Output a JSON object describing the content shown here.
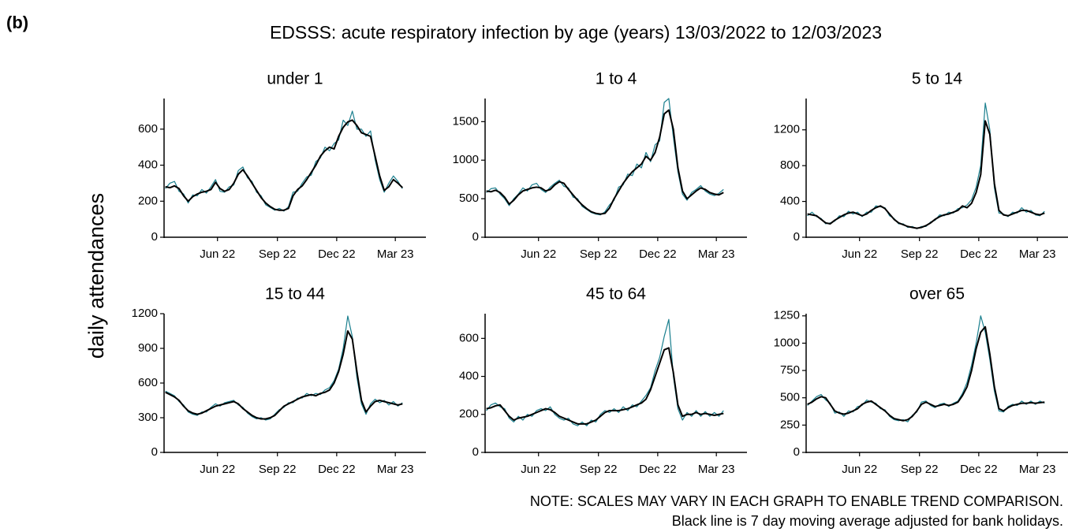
{
  "chart_data": {
    "type": "line",
    "label": "(b)",
    "title": "EDSSS: acute respiratory infection by age (years) 13/03/2022 to 12/03/2023",
    "ylabel": "daily attendances",
    "notes": [
      "NOTE: SCALES MAY VARY IN EACH GRAPH TO ENABLE TREND COMPARISON.",
      "Black line is 7 day moving average adjusted for bank holidays."
    ],
    "x": [
      "2022-03-13",
      "2022-03-20",
      "2022-03-27",
      "2022-04-03",
      "2022-04-10",
      "2022-04-17",
      "2022-04-24",
      "2022-05-01",
      "2022-05-08",
      "2022-05-15",
      "2022-05-22",
      "2022-05-29",
      "2022-06-05",
      "2022-06-12",
      "2022-06-19",
      "2022-06-26",
      "2022-07-03",
      "2022-07-10",
      "2022-07-17",
      "2022-07-24",
      "2022-07-31",
      "2022-08-07",
      "2022-08-14",
      "2022-08-21",
      "2022-08-28",
      "2022-09-04",
      "2022-09-11",
      "2022-09-18",
      "2022-09-25",
      "2022-10-02",
      "2022-10-09",
      "2022-10-16",
      "2022-10-23",
      "2022-10-30",
      "2022-11-06",
      "2022-11-13",
      "2022-11-20",
      "2022-11-27",
      "2022-12-04",
      "2022-12-11",
      "2022-12-18",
      "2022-12-25",
      "2023-01-01",
      "2023-01-08",
      "2023-01-15",
      "2023-01-22",
      "2023-01-29",
      "2023-02-05",
      "2023-02-12",
      "2023-02-19",
      "2023-02-26",
      "2023-03-05",
      "2023-03-12"
    ],
    "xlim": [
      "2022-03-11",
      "2023-04-17"
    ],
    "xticks": [
      {
        "value": "2022-06-01",
        "label": "Jun 22"
      },
      {
        "value": "2022-09-01",
        "label": "Sep 22"
      },
      {
        "value": "2022-12-01",
        "label": "Dec 22"
      },
      {
        "value": "2023-03-01",
        "label": "Mar 23"
      }
    ],
    "panels": [
      {
        "title": "under 1",
        "ylim": [
          0,
          770
        ],
        "yticks": [
          0,
          200,
          400,
          600
        ],
        "series": [
          {
            "color": "#1a7f8e",
            "values": [
              270,
              300,
              310,
              255,
              240,
              190,
              235,
              230,
              265,
              245,
              280,
              320,
              255,
              250,
              280,
              290,
              370,
              390,
              330,
              310,
              250,
              230,
              180,
              165,
              150,
              160,
              145,
              170,
              250,
              255,
              300,
              335,
              345,
              420,
              440,
              500,
              480,
              520,
              540,
              650,
              620,
              700,
              600,
              600,
              560,
              590,
              430,
              320,
              250,
              300,
              340,
              310,
              270
            ]
          },
          {
            "color": "#000000",
            "values": [
              280,
              275,
              285,
              270,
              230,
              200,
              225,
              240,
              250,
              255,
              265,
              305,
              270,
              255,
              265,
              300,
              350,
              375,
              340,
              300,
              260,
              220,
              190,
              170,
              155,
              150,
              150,
              160,
              230,
              265,
              285,
              320,
              360,
              400,
              450,
              480,
              500,
              490,
              560,
              610,
              640,
              650,
              620,
              580,
              570,
              560,
              450,
              340,
              260,
              280,
              320,
              300,
              275
            ]
          }
        ]
      },
      {
        "title": "1 to 4",
        "ylim": [
          0,
          1800
        ],
        "yticks": [
          0,
          500,
          1000,
          1500
        ],
        "series": [
          {
            "color": "#1a7f8e",
            "values": [
              580,
              630,
              640,
              560,
              500,
              410,
              500,
              560,
              640,
              600,
              680,
              700,
              620,
              580,
              650,
              700,
              740,
              660,
              640,
              520,
              500,
              400,
              360,
              320,
              300,
              290,
              330,
              420,
              480,
              650,
              680,
              820,
              800,
              950,
              900,
              1100,
              980,
              1200,
              1250,
              1750,
              1800,
              1300,
              850,
              560,
              480,
              580,
              620,
              670,
              600,
              560,
              540,
              570,
              620
            ]
          },
          {
            "color": "#000000",
            "values": [
              600,
              590,
              610,
              580,
              520,
              430,
              480,
              550,
              600,
              620,
              640,
              650,
              640,
              600,
              620,
              680,
              720,
              700,
              620,
              550,
              480,
              420,
              370,
              330,
              310,
              300,
              310,
              380,
              500,
              600,
              700,
              780,
              850,
              900,
              950,
              1050,
              1000,
              1100,
              1300,
              1600,
              1650,
              1400,
              900,
              600,
              500,
              550,
              600,
              640,
              620,
              580,
              560,
              550,
              580
            ]
          }
        ]
      },
      {
        "title": "5 to 14",
        "ylim": [
          0,
          1550
        ],
        "yticks": [
          0,
          400,
          800,
          1200
        ],
        "series": [
          {
            "color": "#1a7f8e",
            "values": [
              240,
              280,
              230,
              210,
              150,
              160,
              180,
              240,
              230,
              290,
              260,
              280,
              230,
              280,
              280,
              350,
              340,
              330,
              240,
              210,
              150,
              150,
              110,
              120,
              95,
              120,
              120,
              170,
              190,
              250,
              240,
              280,
              270,
              320,
              330,
              360,
              420,
              560,
              800,
              1500,
              1200,
              550,
              270,
              260,
              230,
              280,
              270,
              330,
              280,
              300,
              250,
              240,
              290
            ]
          },
          {
            "color": "#000000",
            "values": [
              260,
              250,
              240,
              200,
              160,
              150,
              190,
              220,
              250,
              270,
              280,
              260,
              240,
              260,
              300,
              330,
              350,
              320,
              260,
              200,
              160,
              140,
              120,
              110,
              100,
              110,
              130,
              160,
              200,
              230,
              250,
              260,
              280,
              300,
              350,
              330,
              380,
              500,
              700,
              1300,
              1150,
              600,
              300,
              250,
              240,
              260,
              280,
              300,
              300,
              280,
              260,
              250,
              270
            ]
          }
        ]
      },
      {
        "title": "15 to 44",
        "ylim": [
          0,
          1200
        ],
        "yticks": [
          0,
          300,
          600,
          900,
          1200
        ],
        "series": [
          {
            "color": "#1a7f8e",
            "values": [
              530,
              510,
              490,
              440,
              410,
              350,
              330,
              320,
              350,
              350,
              390,
              420,
              400,
              430,
              440,
              450,
              410,
              390,
              340,
              310,
              290,
              300,
              280,
              290,
              330,
              370,
              390,
              430,
              430,
              470,
              470,
              510,
              490,
              510,
              500,
              540,
              560,
              620,
              720,
              900,
              1180,
              1000,
              650,
              420,
              330,
              420,
              460,
              430,
              450,
              410,
              440,
              400,
              430
            ]
          },
          {
            "color": "#000000",
            "values": [
              520,
              500,
              480,
              450,
              400,
              360,
              340,
              330,
              340,
              360,
              380,
              400,
              410,
              420,
              430,
              440,
              420,
              380,
              350,
              320,
              300,
              290,
              290,
              300,
              320,
              360,
              400,
              420,
              440,
              460,
              480,
              490,
              500,
              490,
              510,
              520,
              540,
              600,
              700,
              850,
              1050,
              980,
              700,
              450,
              350,
              400,
              440,
              450,
              440,
              430,
              420,
              410,
              420
            ]
          }
        ]
      },
      {
        "title": "45 to 64",
        "ylim": [
          0,
          730
        ],
        "yticks": [
          0,
          200,
          400,
          600
        ],
        "series": [
          {
            "color": "#1a7f8e",
            "values": [
              220,
              250,
              260,
              240,
              230,
              180,
              160,
              190,
              170,
              200,
              190,
              220,
              230,
              220,
              240,
              200,
              180,
              170,
              180,
              150,
              140,
              160,
              140,
              170,
              160,
              200,
              220,
              210,
              230,
              210,
              240,
              220,
              250,
              240,
              270,
              300,
              340,
              430,
              500,
              610,
              700,
              400,
              230,
              170,
              210,
              190,
              220,
              190,
              215,
              190,
              210,
              190,
              220
            ]
          },
          {
            "color": "#000000",
            "values": [
              230,
              235,
              245,
              250,
              220,
              190,
              170,
              180,
              185,
              190,
              200,
              210,
              220,
              230,
              225,
              210,
              190,
              180,
              170,
              160,
              150,
              150,
              150,
              160,
              170,
              190,
              210,
              220,
              220,
              220,
              225,
              230,
              240,
              250,
              260,
              280,
              330,
              400,
              470,
              540,
              550,
              420,
              250,
              190,
              200,
              200,
              210,
              200,
              205,
              200,
              195,
              200,
              205
            ]
          }
        ]
      },
      {
        "title": "over 65",
        "ylim": [
          0,
          1270
        ],
        "yticks": [
          0,
          250,
          500,
          750,
          1000,
          1250
        ],
        "series": [
          {
            "color": "#1a7f8e",
            "values": [
              430,
              470,
              510,
              530,
              480,
              450,
              360,
              370,
              330,
              380,
              370,
              420,
              430,
              480,
              460,
              450,
              400,
              390,
              330,
              300,
              290,
              300,
              280,
              340,
              370,
              460,
              470,
              430,
              410,
              440,
              450,
              420,
              450,
              470,
              540,
              640,
              800,
              1000,
              1250,
              1100,
              850,
              560,
              380,
              370,
              420,
              440,
              430,
              470,
              440,
              470,
              440,
              470,
              450
            ]
          },
          {
            "color": "#000000",
            "values": [
              440,
              460,
              490,
              510,
              500,
              440,
              380,
              360,
              350,
              360,
              380,
              400,
              440,
              460,
              470,
              440,
              410,
              380,
              340,
              310,
              300,
              290,
              300,
              330,
              380,
              440,
              460,
              440,
              420,
              430,
              440,
              430,
              440,
              460,
              520,
              600,
              750,
              950,
              1100,
              1150,
              900,
              600,
              400,
              380,
              410,
              430,
              440,
              450,
              450,
              455,
              450,
              455,
              460
            ]
          }
        ]
      }
    ]
  }
}
